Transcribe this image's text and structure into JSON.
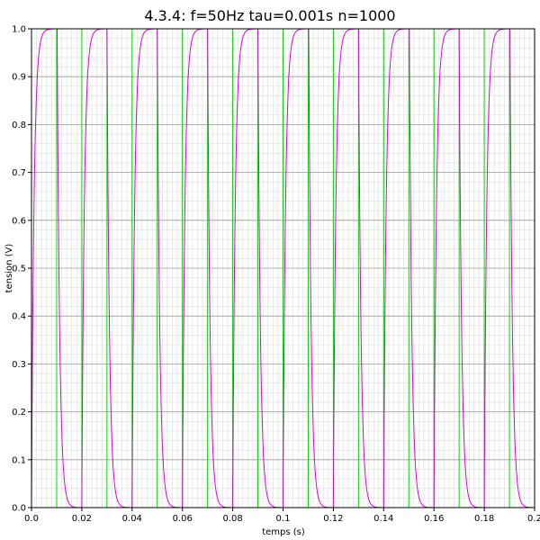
{
  "chart_data": {
    "type": "line",
    "title": "4.3.4: f=50Hz tau=0.001s n=1000",
    "xlabel": "temps (s)",
    "ylabel": "tension (V)",
    "xlim": [
      0.0,
      0.2
    ],
    "ylim": [
      0.0,
      1.0
    ],
    "x_ticks": [
      0.0,
      0.02,
      0.04,
      0.06,
      0.08,
      0.1,
      0.12,
      0.14,
      0.16,
      0.18,
      0.2
    ],
    "x_tick_labels": [
      "0.0",
      "0.02",
      "0.04",
      "0.06",
      "0.08",
      "0.1",
      "0.12",
      "0.14",
      "0.16",
      "0.18",
      "0.2"
    ],
    "y_ticks": [
      0.0,
      0.1,
      0.2,
      0.3,
      0.4,
      0.5,
      0.6,
      0.7,
      0.8,
      0.9,
      1.0
    ],
    "y_tick_labels": [
      "0.0",
      "0.1",
      "0.2",
      "0.3",
      "0.4",
      "0.5",
      "0.6",
      "0.7",
      "0.8",
      "0.9",
      "1.0"
    ],
    "grid": {
      "major": true,
      "minor": true
    },
    "series": [
      {
        "kind": "square-input",
        "color": "#00dd00",
        "frequency_hz": 50,
        "low": 0.0,
        "high": 1.0,
        "duty": 0.5,
        "x_start": 0.0,
        "x_end": 0.2
      },
      {
        "kind": "rc-response",
        "color": "#dd00dd",
        "tau_s": 0.001,
        "n_samples": 1000,
        "x_start": 0.0,
        "x_end": 0.2
      }
    ]
  }
}
